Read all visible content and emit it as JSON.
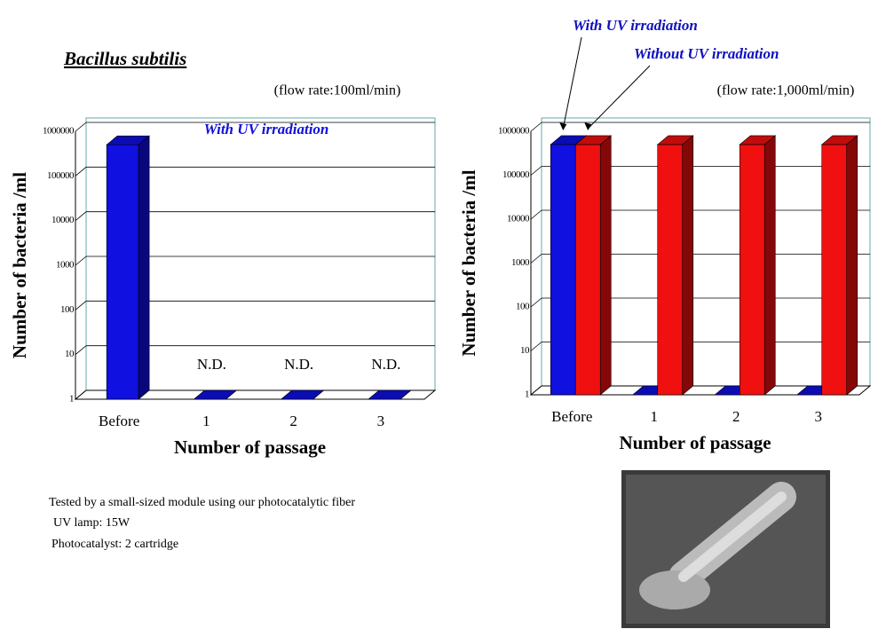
{
  "title": "Bacillus subtilis",
  "notes": [
    "Tested by a small-sized module using our photocatalytic fiber",
    "UV lamp: 15W",
    "Photocatalyst: 2 cartridge"
  ],
  "chart_data": [
    {
      "type": "bar",
      "subtitle": "(flow rate:100ml/min)",
      "x_label": "Number of passage",
      "y_label": "Number of bacteria /ml",
      "log_scale": true,
      "ylim": [
        1,
        1000000
      ],
      "yticks": [
        1,
        10,
        100,
        1000,
        10000,
        100000,
        1000000
      ],
      "categories": [
        "Before",
        "1",
        "2",
        "3"
      ],
      "series": [
        {
          "name": "With UV irradiation",
          "color": "#1010e0",
          "values": [
            500000,
            1,
            1,
            1
          ],
          "value_labels": [
            null,
            "N.D.",
            "N.D.",
            "N.D."
          ]
        }
      ],
      "legend": "inside-top"
    },
    {
      "type": "bar",
      "subtitle": "(flow rate:1,000ml/min)",
      "x_label": "Number of passage",
      "y_label": "Number of bacteria /ml",
      "log_scale": true,
      "ylim": [
        1,
        1000000
      ],
      "yticks": [
        1,
        10,
        100,
        1000,
        10000,
        100000,
        1000000
      ],
      "categories": [
        "Before",
        "1",
        "2",
        "3"
      ],
      "series": [
        {
          "name": "With UV irradiation",
          "color": "#1010e0",
          "values": [
            500000,
            1,
            1,
            1
          ]
        },
        {
          "name": "Without UV irradiation",
          "color": "#f01010",
          "values": [
            500000,
            500000,
            500000,
            500000
          ]
        }
      ],
      "legend": "above-arrows"
    }
  ]
}
